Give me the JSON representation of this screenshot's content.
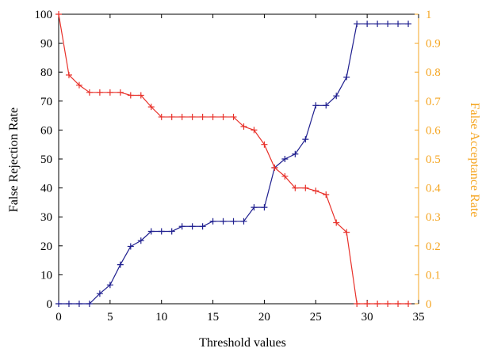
{
  "chart_data": {
    "type": "line",
    "xlabel": "Threshold values",
    "ylabel_left": "False Rejection Rate",
    "ylabel_right": "False Acceptance Rate",
    "xlim": [
      0,
      35
    ],
    "ylim_left": [
      0,
      100
    ],
    "ylim_right": [
      0,
      1
    ],
    "x_ticks": [
      "0",
      "5",
      "10",
      "15",
      "20",
      "25",
      "30",
      "35"
    ],
    "y_left_ticks": [
      "0",
      "10",
      "20",
      "30",
      "40",
      "50",
      "60",
      "70",
      "80",
      "90",
      "100"
    ],
    "y_right_ticks": [
      "0",
      "0.1",
      "0.2",
      "0.3",
      "0.4",
      "0.5",
      "0.6",
      "0.7",
      "0.8",
      "0.9",
      "1"
    ],
    "grid": false,
    "legend": "none",
    "colors": {
      "blue_series": "#1f1f8f",
      "red_series": "#e8312a",
      "right_axis": "#f5a623",
      "axis": "#000000"
    },
    "series": [
      {
        "axis": "left",
        "color": "#1f1f8f",
        "marker": "+",
        "x": [
          0,
          1,
          2,
          3,
          4,
          5,
          6,
          7,
          8,
          9,
          10,
          11,
          12,
          13,
          14,
          15,
          16,
          17,
          18,
          19,
          20,
          21,
          22,
          23,
          24,
          25,
          26,
          27,
          28,
          29,
          30,
          31,
          32,
          33,
          34
        ],
        "values": [
          0,
          0,
          0,
          0,
          3.5,
          6.5,
          13.5,
          19.8,
          21.8,
          25,
          25,
          25,
          26.7,
          26.7,
          26.7,
          28.5,
          28.5,
          28.5,
          28.5,
          33.3,
          33.3,
          47,
          50,
          51.7,
          56.8,
          68.5,
          68.5,
          71.8,
          78.3,
          96.7,
          96.7,
          96.7,
          96.7,
          96.7,
          96.7
        ]
      },
      {
        "axis": "right",
        "color": "#e8312a",
        "marker": "+",
        "x": [
          0,
          1,
          2,
          3,
          4,
          5,
          6,
          7,
          8,
          9,
          10,
          11,
          12,
          13,
          14,
          15,
          16,
          17,
          18,
          19,
          20,
          21,
          22,
          23,
          24,
          25,
          26,
          27,
          28,
          29,
          30,
          31,
          32,
          33,
          34
        ],
        "values": [
          1.0,
          0.79,
          0.755,
          0.73,
          0.73,
          0.73,
          0.73,
          0.72,
          0.72,
          0.68,
          0.645,
          0.645,
          0.645,
          0.645,
          0.645,
          0.645,
          0.645,
          0.645,
          0.612,
          0.6,
          0.55,
          0.47,
          0.44,
          0.4,
          0.4,
          0.39,
          0.377,
          0.28,
          0.247,
          0,
          0,
          0,
          0,
          0,
          0
        ]
      }
    ]
  }
}
